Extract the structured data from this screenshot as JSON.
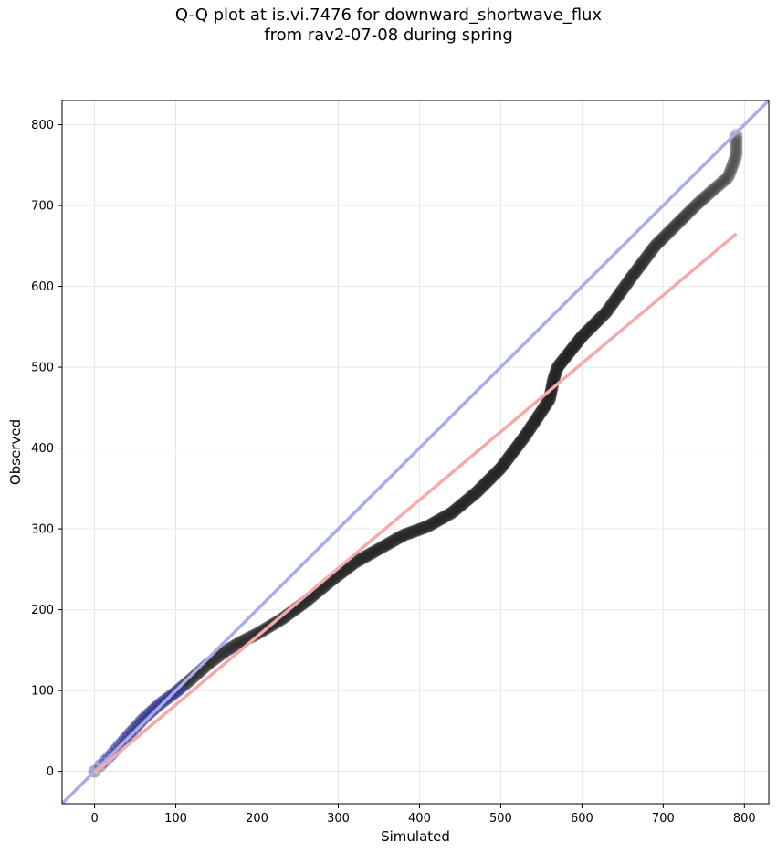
{
  "chart_data": {
    "type": "scatter",
    "title_line1": "Q-Q plot at is.vi.7476 for downward_shortwave_flux",
    "title_line2": "from rav2-07-08 during spring",
    "xlabel": "Simulated",
    "ylabel": "Observed",
    "xlim": [
      -40,
      830
    ],
    "ylim": [
      -40,
      830
    ],
    "xticks": [
      0,
      100,
      200,
      300,
      400,
      500,
      600,
      700,
      800
    ],
    "yticks": [
      0,
      100,
      200,
      300,
      400,
      500,
      600,
      700,
      800
    ],
    "grid": true,
    "colors": {
      "points": "#222222",
      "identity_line": "#aaaaf0",
      "fit_line": "#f5a9a9",
      "grid": "#e6e6e6",
      "early_points_tint": "#1a237e"
    },
    "identity_line": {
      "x": [
        -40,
        830
      ],
      "y": [
        -40,
        830
      ]
    },
    "fit_line": {
      "x": [
        0,
        790
      ],
      "y": [
        -2,
        665
      ]
    },
    "quantile_knots": {
      "x": [
        0,
        20,
        40,
        60,
        80,
        100,
        120,
        140,
        160,
        180,
        200,
        230,
        260,
        290,
        320,
        350,
        380,
        410,
        440,
        470,
        500,
        530,
        550,
        560,
        565,
        570,
        600,
        630,
        660,
        690,
        720,
        740,
        760,
        780,
        790,
        790
      ],
      "y": [
        0,
        20,
        43,
        65,
        83,
        98,
        115,
        133,
        148,
        160,
        170,
        188,
        210,
        235,
        258,
        275,
        292,
        303,
        320,
        345,
        375,
        415,
        445,
        460,
        485,
        500,
        538,
        568,
        610,
        650,
        680,
        700,
        718,
        735,
        762,
        788
      ]
    },
    "point_count": 520
  }
}
